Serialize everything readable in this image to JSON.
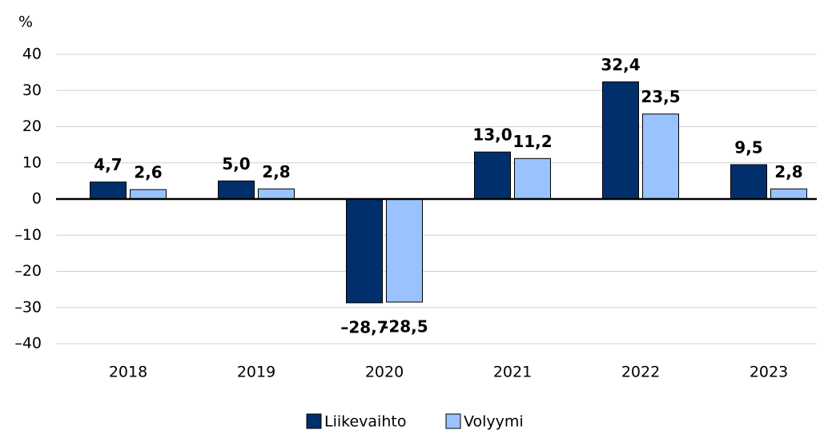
{
  "chart_data": {
    "type": "bar",
    "y_label": "%",
    "categories": [
      "2018",
      "2019",
      "2020",
      "2021",
      "2022",
      "2023"
    ],
    "series": [
      {
        "name": "Liikevaihto",
        "color": "#002f6c",
        "values": [
          4.7,
          5.0,
          -28.7,
          13.0,
          32.4,
          9.5
        ],
        "value_labels": [
          "4,7",
          "5,0",
          "–28,7",
          "13,0",
          "32,4",
          "9,5"
        ]
      },
      {
        "name": "Volyymi",
        "color": "#99c2ff",
        "values": [
          2.6,
          2.8,
          -28.5,
          11.2,
          23.5,
          2.8
        ],
        "value_labels": [
          "2,6",
          "2,8",
          "–28,5",
          "11,2",
          "23,5",
          "2,8"
        ]
      }
    ],
    "ylim": [
      -40,
      40
    ],
    "yticks": [
      {
        "value": -40,
        "label": "–40"
      },
      {
        "value": -30,
        "label": "–30"
      },
      {
        "value": -20,
        "label": "–20"
      },
      {
        "value": -10,
        "label": "–10"
      },
      0,
      10,
      20,
      30,
      40
    ],
    "grid": true,
    "legend": "bottom"
  }
}
